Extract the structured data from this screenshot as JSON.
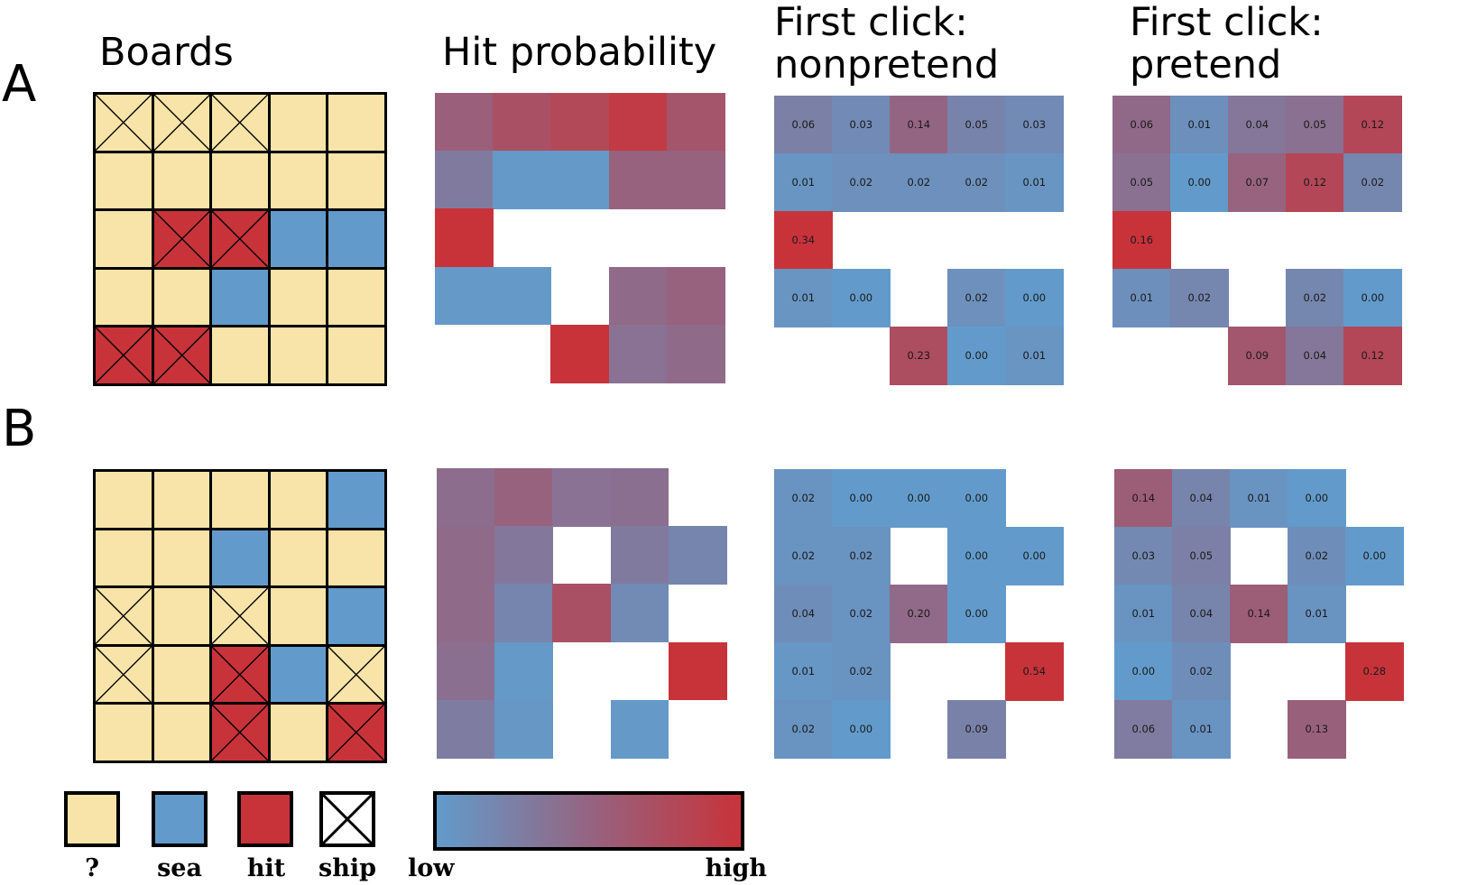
{
  "row_labels": {
    "A": "A",
    "B": "B"
  },
  "column_titles": {
    "boards": "Boards",
    "hit_probability": "Hit probability",
    "nonpretend": "First click:\nnonpretend",
    "pretend": "First click:\npretend"
  },
  "colors": {
    "unknown": "#f8e3a8",
    "sea": "#629bcb",
    "hit": "#c8333a",
    "ship": "#ffffff",
    "low": "#629bcb",
    "high": "#c8333a"
  },
  "boards": {
    "A": [
      [
        "?x",
        "?x",
        "?x",
        "?",
        "?"
      ],
      [
        "?",
        "?",
        "?",
        "?",
        "?"
      ],
      [
        "?",
        "hx",
        "hx",
        "s",
        "s"
      ],
      [
        "?",
        "?",
        "s",
        "?",
        "?"
      ],
      [
        "hx",
        "hx",
        "?",
        "?",
        "?"
      ]
    ],
    "B": [
      [
        "?",
        "?",
        "?",
        "?",
        "s"
      ],
      [
        "?",
        "?",
        "s",
        "?",
        "?"
      ],
      [
        "?x",
        "?",
        "?x",
        "?",
        "s"
      ],
      [
        "?x",
        "?",
        "hx",
        "s",
        "?x"
      ],
      [
        "?",
        "?",
        "hx",
        "?",
        "hx"
      ]
    ]
  },
  "hit_probability": {
    "A": [
      [
        0.55,
        0.7,
        0.78,
        0.92,
        0.65
      ],
      [
        0.3,
        0.02,
        0.02,
        0.52,
        0.52
      ],
      [
        1.0,
        null,
        null,
        null,
        null
      ],
      [
        0.02,
        0.02,
        null,
        0.45,
        0.52
      ],
      [
        null,
        null,
        1.0,
        0.38,
        0.45
      ]
    ],
    "B": [
      [
        0.42,
        0.52,
        0.38,
        0.4,
        null
      ],
      [
        0.45,
        0.32,
        null,
        0.3,
        0.2
      ],
      [
        0.45,
        0.2,
        0.7,
        0.15,
        null
      ],
      [
        0.4,
        0.02,
        null,
        null,
        1.0
      ],
      [
        0.28,
        0.04,
        null,
        0.02,
        null
      ]
    ]
  },
  "first_click_nonpretend": {
    "A": [
      [
        "0.06",
        "0.03",
        "0.14",
        "0.05",
        "0.03"
      ],
      [
        "0.01",
        "0.02",
        "0.02",
        "0.02",
        "0.01"
      ],
      [
        "0.34",
        null,
        null,
        null,
        null
      ],
      [
        "0.01",
        "0.00",
        null,
        "0.02",
        "0.00"
      ],
      [
        null,
        null,
        "0.23",
        "0.00",
        "0.01"
      ]
    ],
    "B": [
      [
        "0.02",
        "0.00",
        "0.00",
        "0.00",
        null
      ],
      [
        "0.02",
        "0.02",
        null,
        "0.00",
        "0.00"
      ],
      [
        "0.04",
        "0.02",
        "0.20",
        "0.00",
        null
      ],
      [
        "0.01",
        "0.02",
        null,
        null,
        "0.54"
      ],
      [
        "0.02",
        "0.00",
        null,
        "0.09",
        null
      ]
    ]
  },
  "first_click_pretend": {
    "A": [
      [
        "0.06",
        "0.01",
        "0.04",
        "0.05",
        "0.12"
      ],
      [
        "0.05",
        "0.00",
        "0.07",
        "0.12",
        "0.02"
      ],
      [
        "0.16",
        null,
        null,
        null,
        null
      ],
      [
        "0.01",
        "0.02",
        null,
        "0.02",
        "0.00"
      ],
      [
        null,
        null,
        "0.09",
        "0.04",
        "0.12"
      ]
    ],
    "B": [
      [
        "0.14",
        "0.04",
        "0.01",
        "0.00",
        null
      ],
      [
        "0.03",
        "0.05",
        null,
        "0.02",
        "0.00"
      ],
      [
        "0.01",
        "0.04",
        "0.14",
        "0.01",
        null
      ],
      [
        "0.00",
        "0.02",
        null,
        null,
        "0.28"
      ],
      [
        "0.06",
        "0.01",
        null,
        "0.13",
        null
      ]
    ]
  },
  "legend": {
    "unknown": "?",
    "sea": "sea",
    "hit": "hit",
    "ship": "ship",
    "low": "low",
    "high": "high"
  }
}
